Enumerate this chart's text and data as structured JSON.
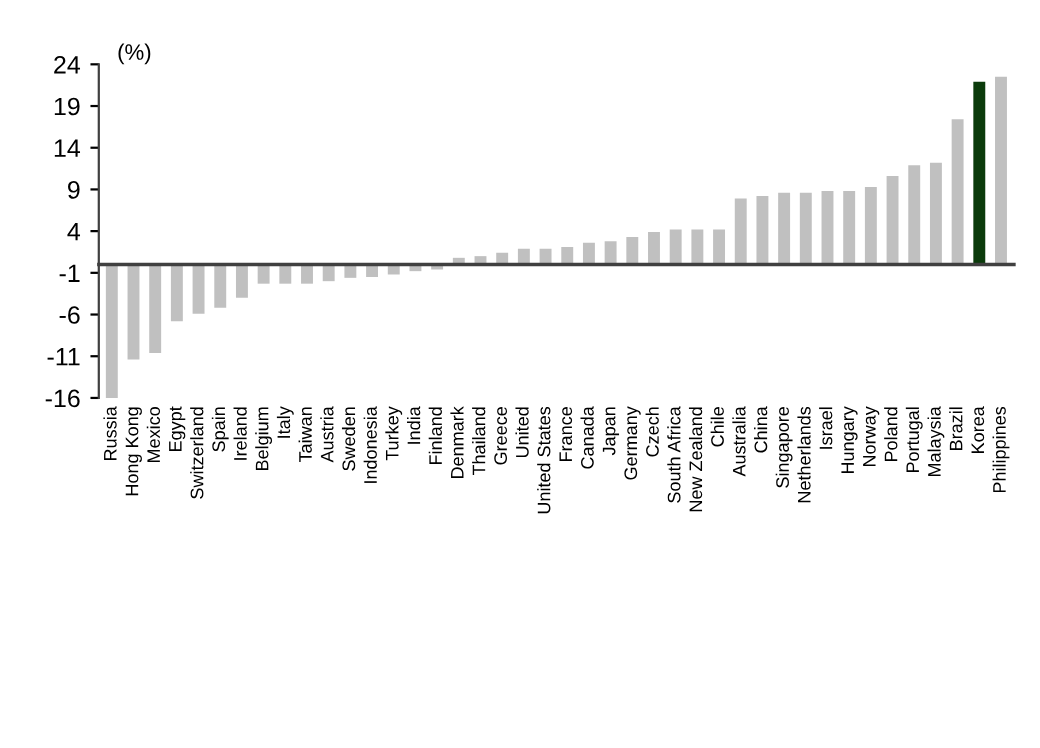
{
  "chart_data": {
    "type": "bar",
    "ylabel": "(%)",
    "categories": [
      "Russia",
      "Hong Kong",
      "Mexico",
      "Egypt",
      "Switzerland",
      "Spain",
      "Ireland",
      "Belgium",
      "Italy",
      "Taiwan",
      "Austria",
      "Sweden",
      "Indonesia",
      "Turkey",
      "India",
      "Finland",
      "Denmark",
      "Thailand",
      "Greece",
      "United",
      "United States",
      "France",
      "Canada",
      "Japan",
      "Germany",
      "Czech",
      "South Africa",
      "New Zealand",
      "Chile",
      "Australia",
      "China",
      "Singapore",
      "Netherlands",
      "Israel",
      "Hungary",
      "Norway",
      "Poland",
      "Portugal",
      "Malaysia",
      "Brazil",
      "Korea",
      "Philippines"
    ],
    "values": [
      -16.0,
      -11.4,
      -10.6,
      -6.8,
      -5.9,
      -5.2,
      -4.0,
      -2.3,
      -2.3,
      -2.3,
      -2.0,
      -1.6,
      -1.5,
      -1.2,
      -0.8,
      -0.6,
      0.8,
      1.0,
      1.4,
      1.9,
      1.9,
      2.1,
      2.6,
      2.8,
      3.3,
      3.9,
      4.2,
      4.2,
      4.2,
      7.9,
      8.2,
      8.6,
      8.6,
      8.8,
      8.8,
      9.3,
      10.6,
      11.9,
      12.2,
      17.4,
      21.9,
      22.5
    ],
    "colors": [
      "#c0c0c0",
      "#c0c0c0",
      "#c0c0c0",
      "#c0c0c0",
      "#c0c0c0",
      "#c0c0c0",
      "#c0c0c0",
      "#c0c0c0",
      "#c0c0c0",
      "#c0c0c0",
      "#c0c0c0",
      "#c0c0c0",
      "#c0c0c0",
      "#c0c0c0",
      "#c0c0c0",
      "#c0c0c0",
      "#c0c0c0",
      "#c0c0c0",
      "#c0c0c0",
      "#c0c0c0",
      "#c0c0c0",
      "#c0c0c0",
      "#c0c0c0",
      "#c0c0c0",
      "#c0c0c0",
      "#c0c0c0",
      "#c0c0c0",
      "#c0c0c0",
      "#c0c0c0",
      "#c0c0c0",
      "#c0c0c0",
      "#c0c0c0",
      "#c0c0c0",
      "#c0c0c0",
      "#c0c0c0",
      "#c0c0c0",
      "#c0c0c0",
      "#c0c0c0",
      "#c0c0c0",
      "#c0c0c0",
      "#0b3b0b",
      "#c0c0c0"
    ],
    "ylim": [
      -16,
      24
    ],
    "yticks": [
      -16,
      -11,
      -6,
      -1,
      4,
      9,
      14,
      19,
      24
    ],
    "grid": false,
    "legend": false
  }
}
